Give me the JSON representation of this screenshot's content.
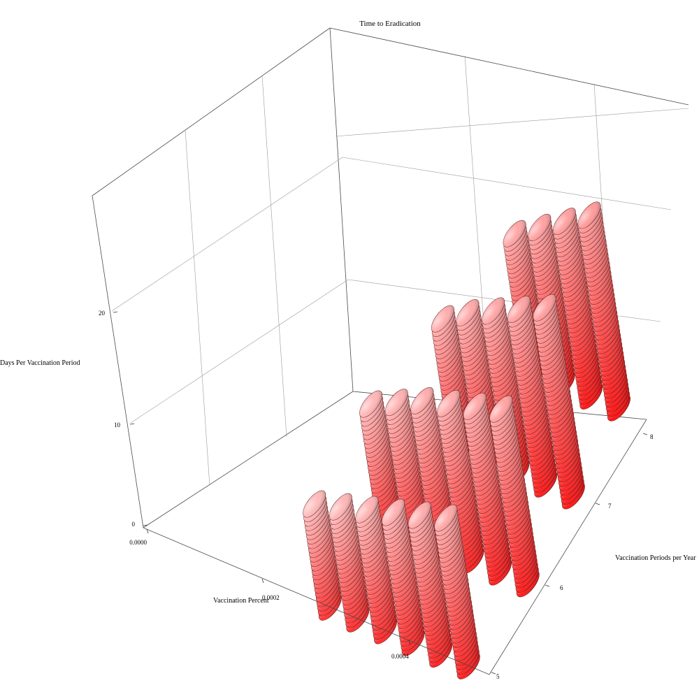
{
  "chart_data": {
    "type": "scatter",
    "subtype": "3d-stacked-disks",
    "title": "Time to Eradication",
    "xlabel": "Vaccination Percent",
    "ylabel": "Vaccination Periods per Year",
    "zlabel": "Days Per Vaccination Period",
    "x_ticks": [
      "0.0000",
      "0.0002",
      "0.0004"
    ],
    "y_ticks": [
      "5",
      "6",
      "7",
      "8"
    ],
    "z_ticks": [
      "0",
      "10",
      "20"
    ],
    "xlim": [
      0,
      0.0005
    ],
    "ylim": [
      5,
      8
    ],
    "zlim": [
      0,
      28
    ],
    "grid": true,
    "color_low": "#ff0000",
    "color_high": "#ffffff",
    "columns": [
      {
        "x": 0.00027,
        "y": 5,
        "disks": 24
      },
      {
        "x": 0.00031,
        "y": 5,
        "disks": 26
      },
      {
        "x": 0.00035,
        "y": 5,
        "disks": 28
      },
      {
        "x": 0.00039,
        "y": 5,
        "disks": 30
      },
      {
        "x": 0.00043,
        "y": 5,
        "disks": 32
      },
      {
        "x": 0.00047,
        "y": 5,
        "disks": 34
      },
      {
        "x": 0.00028,
        "y": 6,
        "disks": 28
      },
      {
        "x": 0.00032,
        "y": 6,
        "disks": 31
      },
      {
        "x": 0.00036,
        "y": 6,
        "disks": 34
      },
      {
        "x": 0.0004,
        "y": 6,
        "disks": 36
      },
      {
        "x": 0.00044,
        "y": 6,
        "disks": 38
      },
      {
        "x": 0.00048,
        "y": 6,
        "disks": 40
      },
      {
        "x": 0.00031,
        "y": 7,
        "disks": 30
      },
      {
        "x": 0.00035,
        "y": 7,
        "disks": 34
      },
      {
        "x": 0.00039,
        "y": 7,
        "disks": 37
      },
      {
        "x": 0.00043,
        "y": 7,
        "disks": 40
      },
      {
        "x": 0.00047,
        "y": 7,
        "disks": 43
      },
      {
        "x": 0.00034,
        "y": 8,
        "disks": 32
      },
      {
        "x": 0.00038,
        "y": 8,
        "disks": 36
      },
      {
        "x": 0.00042,
        "y": 8,
        "disks": 40
      },
      {
        "x": 0.00046,
        "y": 8,
        "disks": 44
      }
    ]
  }
}
